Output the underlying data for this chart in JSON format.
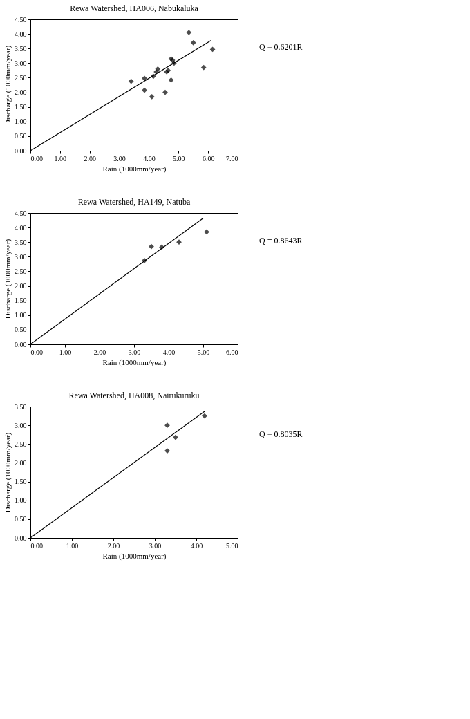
{
  "chart_data": [
    {
      "type": "scatter",
      "title": "Rewa Watershed, HA006, Nabukaluka",
      "xlabel": "Rain (1000mm/year)",
      "ylabel": "Discharge (1000mm/year)",
      "annotations": [
        "Q = 0.6201R"
      ],
      "marker": "diamond",
      "grid": false,
      "xlim": [
        0,
        7
      ],
      "ylim": [
        0,
        4.5
      ],
      "xticks": [
        {
          "value": 0,
          "label": "0.00"
        },
        {
          "value": 1,
          "label": "1.00"
        },
        {
          "value": 2,
          "label": "2.00"
        },
        {
          "value": 3,
          "label": "3.00"
        },
        {
          "value": 4,
          "label": "4.00"
        },
        {
          "value": 5,
          "label": "5.00"
        },
        {
          "value": 6,
          "label": "6.00"
        },
        {
          "value": 7,
          "label": "7.00"
        }
      ],
      "yticks": [
        {
          "value": 0,
          "label": "0.00"
        },
        {
          "value": 0.5,
          "label": "0.50"
        },
        {
          "value": 1,
          "label": "1.00"
        },
        {
          "value": 1.5,
          "label": "1.50"
        },
        {
          "value": 2,
          "label": "2.00"
        },
        {
          "value": 2.5,
          "label": "2.50"
        },
        {
          "value": 3,
          "label": "3.00"
        },
        {
          "value": 3.5,
          "label": "3.50"
        },
        {
          "value": 4,
          "label": "4.00"
        },
        {
          "value": 4.5,
          "label": "4.50"
        }
      ],
      "series": [
        {
          "color": "#000000",
          "x": [
            3.4,
            3.85,
            3.85,
            4.1,
            4.15,
            4.25,
            4.3,
            4.55,
            4.6,
            4.65,
            4.75,
            4.75,
            4.8,
            4.85,
            5.35,
            5.5,
            5.85,
            6.15
          ],
          "values": [
            2.38,
            2.48,
            2.07,
            1.85,
            2.55,
            2.7,
            2.8,
            2.0,
            2.7,
            2.75,
            2.42,
            3.15,
            3.1,
            3.0,
            4.05,
            3.7,
            2.85,
            3.47
          ]
        },
        {
          "type": "line",
          "marker": "none",
          "color": "#000000",
          "x": [
            0,
            6.1
          ],
          "values": [
            0,
            3.78
          ]
        }
      ]
    },
    {
      "type": "scatter",
      "title": "Rewa Watershed, HA149, Natuba",
      "xlabel": "Rain (1000mm/year)",
      "ylabel": "Discharge (1000mm/year)",
      "annotations": [
        "Q = 0.8643R"
      ],
      "marker": "diamond",
      "grid": false,
      "xlim": [
        0,
        6
      ],
      "ylim": [
        0,
        4.5
      ],
      "xticks": [
        {
          "value": 0,
          "label": "0.00"
        },
        {
          "value": 1,
          "label": "1.00"
        },
        {
          "value": 2,
          "label": "2.00"
        },
        {
          "value": 3,
          "label": "3.00"
        },
        {
          "value": 4,
          "label": "4.00"
        },
        {
          "value": 5,
          "label": "5.00"
        },
        {
          "value": 6,
          "label": "6.00"
        }
      ],
      "yticks": [
        {
          "value": 0,
          "label": "0.00"
        },
        {
          "value": 0.5,
          "label": "0.50"
        },
        {
          "value": 1,
          "label": "1.00"
        },
        {
          "value": 1.5,
          "label": "1.50"
        },
        {
          "value": 2,
          "label": "2.00"
        },
        {
          "value": 2.5,
          "label": "2.50"
        },
        {
          "value": 3,
          "label": "3.00"
        },
        {
          "value": 3.5,
          "label": "3.50"
        },
        {
          "value": 4,
          "label": "4.00"
        },
        {
          "value": 4.5,
          "label": "4.50"
        }
      ],
      "series": [
        {
          "color": "#000000",
          "x": [
            3.3,
            3.5,
            3.8,
            4.3,
            5.1
          ],
          "values": [
            2.87,
            3.35,
            3.33,
            3.5,
            3.85
          ]
        },
        {
          "type": "line",
          "marker": "none",
          "color": "#000000",
          "x": [
            0,
            5.0
          ],
          "values": [
            0,
            4.32
          ]
        }
      ]
    },
    {
      "type": "scatter",
      "title": "Rewa Watershed, HA008, Nairukuruku",
      "xlabel": "Rain (1000mm/year)",
      "ylabel": "Discharge (1000mm/year)",
      "annotations": [
        "Q = 0.8035R"
      ],
      "marker": "diamond",
      "grid": false,
      "xlim": [
        0,
        5
      ],
      "ylim": [
        0,
        3.5
      ],
      "xticks": [
        {
          "value": 0,
          "label": "0.00"
        },
        {
          "value": 1,
          "label": "1.00"
        },
        {
          "value": 2,
          "label": "2.00"
        },
        {
          "value": 3,
          "label": "3.00"
        },
        {
          "value": 4,
          "label": "4.00"
        },
        {
          "value": 5,
          "label": "5.00"
        }
      ],
      "yticks": [
        {
          "value": 0,
          "label": "0.00"
        },
        {
          "value": 0.5,
          "label": "0.50"
        },
        {
          "value": 1,
          "label": "1.00"
        },
        {
          "value": 1.5,
          "label": "1.50"
        },
        {
          "value": 2,
          "label": "2.00"
        },
        {
          "value": 2.5,
          "label": "2.50"
        },
        {
          "value": 3,
          "label": "3.00"
        },
        {
          "value": 3.5,
          "label": "3.50"
        }
      ],
      "series": [
        {
          "color": "#000000",
          "x": [
            3.3,
            3.3,
            3.5,
            4.2
          ],
          "values": [
            2.32,
            3.0,
            2.68,
            3.25
          ]
        },
        {
          "type": "line",
          "marker": "none",
          "color": "#000000",
          "x": [
            0,
            4.2
          ],
          "values": [
            0,
            3.37
          ]
        }
      ]
    }
  ]
}
